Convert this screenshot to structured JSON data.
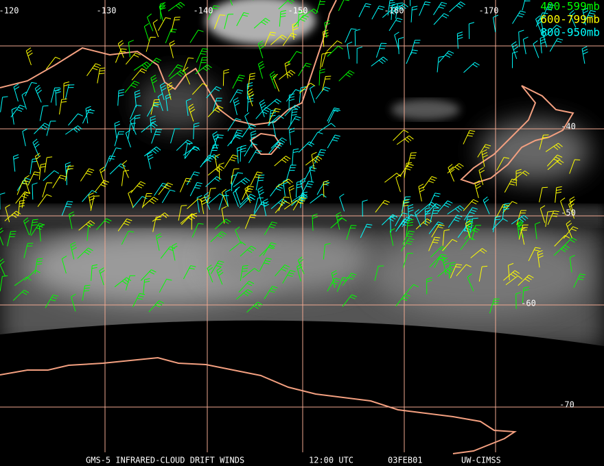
{
  "map": {
    "longitude_labels": [
      "-120",
      "-130",
      "-140",
      "-150",
      "-160",
      "-170"
    ],
    "latitude_labels": [
      "-40",
      "-50",
      "-60",
      "-70"
    ],
    "legend": [
      {
        "label": "400-599mb",
        "color": "#00ff00"
      },
      {
        "label": "600-799mb",
        "color": "#ffff00"
      },
      {
        "label": "800-950mb",
        "color": "#00ffff"
      }
    ],
    "footer": {
      "title": "GMS-5 INFRARED-CLOUD DRIFT WINDS",
      "time": "12:00 UTC",
      "date": "03FEB01",
      "source": "UW-CIMSS"
    }
  }
}
